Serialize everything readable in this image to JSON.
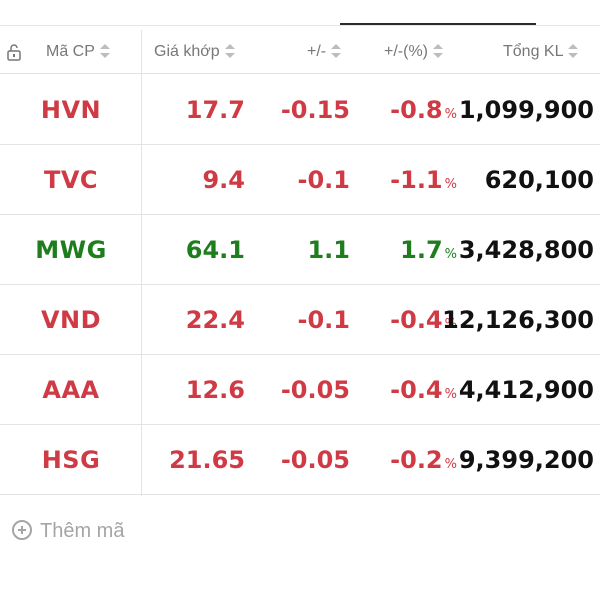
{
  "header": {
    "columns": [
      "Mã CP",
      "Giá khớp",
      "+/-",
      "+/-(%)",
      "Tổng KL"
    ]
  },
  "rows": [
    {
      "symbol": "HVN",
      "price": "17.7",
      "change": "-0.15",
      "pct": "-0.8",
      "volume": "1,099,900",
      "direction": "down"
    },
    {
      "symbol": "TVC",
      "price": "9.4",
      "change": "-0.1",
      "pct": "-1.1",
      "volume": "620,100",
      "direction": "down"
    },
    {
      "symbol": "MWG",
      "price": "64.1",
      "change": "1.1",
      "pct": "1.7",
      "volume": "3,428,800",
      "direction": "up"
    },
    {
      "symbol": "VND",
      "price": "22.4",
      "change": "-0.1",
      "pct": "-0.4",
      "volume": "12,126,300",
      "direction": "down"
    },
    {
      "symbol": "AAA",
      "price": "12.6",
      "change": "-0.05",
      "pct": "-0.4",
      "volume": "4,412,900",
      "direction": "down"
    },
    {
      "symbol": "HSG",
      "price": "21.65",
      "change": "-0.05",
      "pct": "-0.2",
      "volume": "9,399,200",
      "direction": "down"
    }
  ],
  "pct_unit": "%",
  "add_label": "Thêm mã",
  "colors": {
    "down": "#cf3a45",
    "up": "#1e7e1e"
  },
  "icons": {
    "lock": "lock-open-icon",
    "sort": "sort-icon",
    "add": "plus-circle-icon"
  }
}
